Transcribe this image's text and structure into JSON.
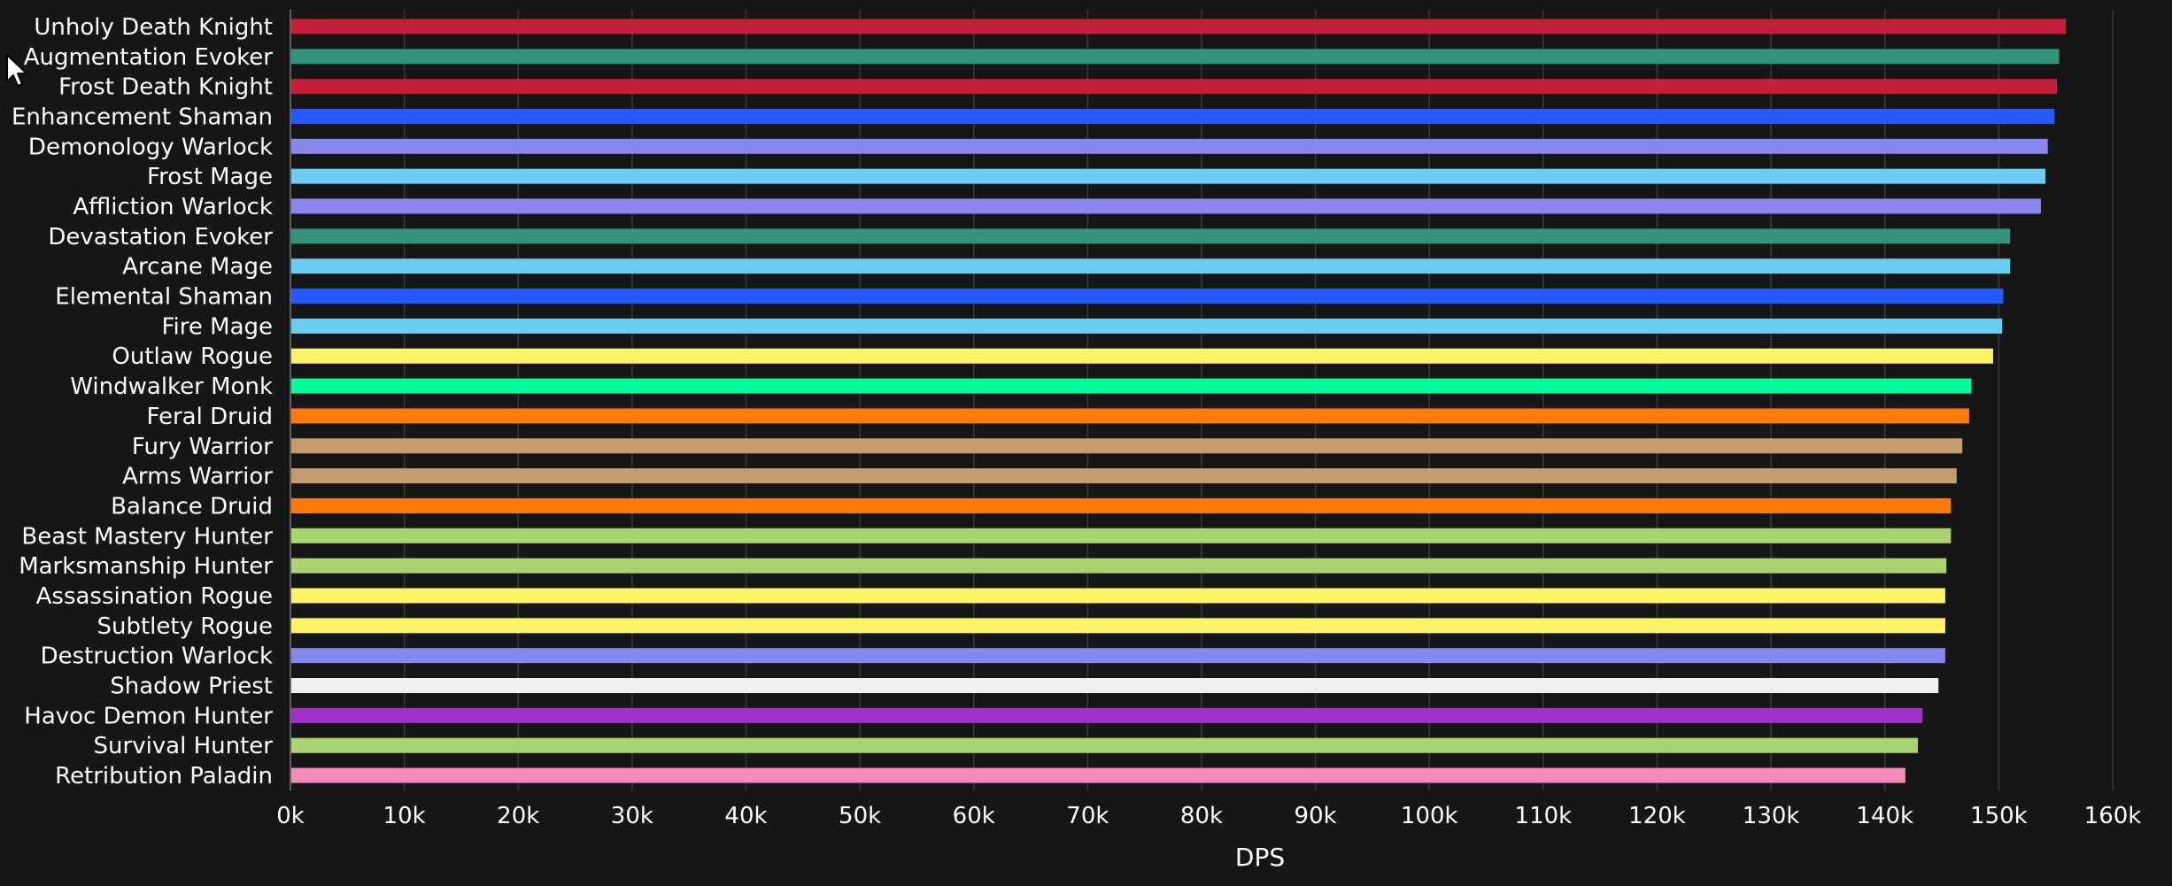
{
  "chart_data": {
    "type": "bar",
    "orientation": "horizontal",
    "xlabel": "DPS",
    "ylabel": "",
    "xlim": [
      0,
      160000
    ],
    "grid": true,
    "legend": "none",
    "tick_values": [
      0,
      10000,
      20000,
      30000,
      40000,
      50000,
      60000,
      70000,
      80000,
      90000,
      100000,
      110000,
      120000,
      130000,
      140000,
      150000,
      160000
    ],
    "tick_labels": [
      "0k",
      "10k",
      "20k",
      "30k",
      "40k",
      "50k",
      "60k",
      "70k",
      "80k",
      "90k",
      "100k",
      "110k",
      "120k",
      "130k",
      "140k",
      "150k",
      "160k"
    ],
    "categories": [
      "Unholy Death Knight",
      "Augmentation Evoker",
      "Frost Death Knight",
      "Enhancement Shaman",
      "Demonology Warlock",
      "Frost Mage",
      "Affliction Warlock",
      "Devastation Evoker",
      "Arcane Mage",
      "Elemental Shaman",
      "Fire Mage",
      "Outlaw Rogue",
      "Windwalker Monk",
      "Feral Druid",
      "Fury Warrior",
      "Arms Warrior",
      "Balance Druid",
      "Beast Mastery Hunter",
      "Marksmanship Hunter",
      "Assassination Rogue",
      "Subtlety Rogue",
      "Destruction Warlock",
      "Shadow Priest",
      "Havoc Demon Hunter",
      "Survival Hunter",
      "Retribution Paladin"
    ],
    "values": [
      155900,
      155300,
      155100,
      154900,
      154300,
      154100,
      153700,
      151000,
      151000,
      150400,
      150300,
      149500,
      147600,
      147400,
      146800,
      146300,
      145800,
      145800,
      145400,
      145300,
      145300,
      145300,
      144700,
      143300,
      142900,
      141800
    ],
    "colors": [
      "#c41e3a",
      "#33937f",
      "#c41e3a",
      "#2359ff",
      "#8788ee",
      "#69ccf0",
      "#8788ee",
      "#33937f",
      "#69ccf0",
      "#2359ff",
      "#69ccf0",
      "#fff468",
      "#00ff98",
      "#ff7c0a",
      "#c69b6d",
      "#c69b6d",
      "#ff7c0a",
      "#aad372",
      "#aad372",
      "#fff468",
      "#fff468",
      "#8788ee",
      "#f0f0f0",
      "#a330c9",
      "#aad372",
      "#f48cba"
    ]
  },
  "cursor": {
    "icon": "mouse-pointer-icon"
  }
}
